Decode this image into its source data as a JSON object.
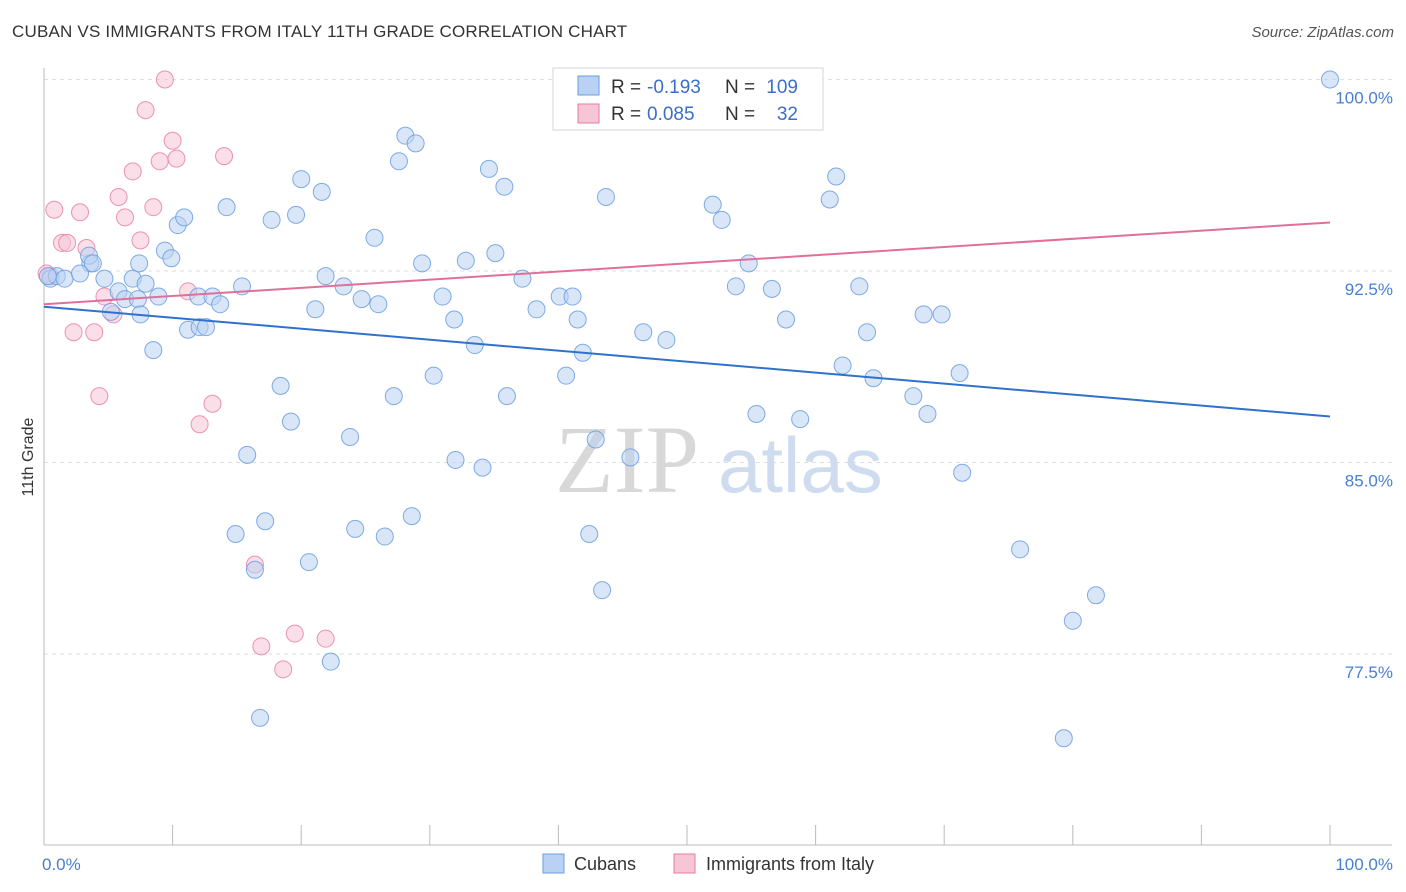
{
  "title": "CUBAN VS IMMIGRANTS FROM ITALY 11TH GRADE CORRELATION CHART",
  "source": "Source: ZipAtlas.com",
  "colors": {
    "cubans": "#6a9de0",
    "cubans_fill": "#b9d1f2",
    "italy": "#e87aa0",
    "italy_fill": "#f6c5d6",
    "blue_line": "#2f72cc",
    "pink_line": "#e0709a",
    "tick_text": "#4a7fd0",
    "grid": "#dddddd"
  },
  "legend": {
    "rows": [
      {
        "r_label": "R =",
        "r_value": "-0.193",
        "n_label": "N =",
        "n_value": "109"
      },
      {
        "r_label": "R =",
        "r_value": "0.085",
        "n_label": "N =",
        "n_value": "32"
      }
    ]
  },
  "watermark": {
    "zip": "ZIP",
    "atlas": "atlas"
  },
  "chart_data": {
    "type": "scatter",
    "xlabel": "",
    "ylabel": "11th Grade",
    "xlim": [
      0,
      100
    ],
    "ylim": [
      72,
      100.5
    ],
    "y_ticks": [
      100.0,
      92.5,
      85.0,
      77.5
    ],
    "y_tick_labels": [
      "100.0%",
      "92.5%",
      "85.0%",
      "77.5%"
    ],
    "x_tick_labels": [
      "0.0%",
      "100.0%"
    ],
    "series": [
      {
        "name": "Cubans",
        "points": [
          [
            0.5,
            92.2
          ],
          [
            1.0,
            92.3
          ],
          [
            1.6,
            92.2
          ],
          [
            3.6,
            92.8
          ],
          [
            3.5,
            93.1
          ],
          [
            3.8,
            92.8
          ],
          [
            4.7,
            92.2
          ],
          [
            5.2,
            90.9
          ],
          [
            5.8,
            91.7
          ],
          [
            6.3,
            91.4
          ],
          [
            6.9,
            92.2
          ],
          [
            7.3,
            91.4
          ],
          [
            7.5,
            90.8
          ],
          [
            7.4,
            92.8
          ],
          [
            7.9,
            92.0
          ],
          [
            8.5,
            89.4
          ],
          [
            8.9,
            91.5
          ],
          [
            9.4,
            93.3
          ],
          [
            9.9,
            93.0
          ],
          [
            10.4,
            94.3
          ],
          [
            10.9,
            94.6
          ],
          [
            11.2,
            90.2
          ],
          [
            12.0,
            91.5
          ],
          [
            12.1,
            90.3
          ],
          [
            12.6,
            90.3
          ],
          [
            13.1,
            91.5
          ],
          [
            13.7,
            91.2
          ],
          [
            14.2,
            95.0
          ],
          [
            14.9,
            82.2
          ],
          [
            15.4,
            91.9
          ],
          [
            15.8,
            85.3
          ],
          [
            16.4,
            80.8
          ],
          [
            16.8,
            75.0
          ],
          [
            17.2,
            82.7
          ],
          [
            17.7,
            94.5
          ],
          [
            18.4,
            88.0
          ],
          [
            19.2,
            86.6
          ],
          [
            19.6,
            94.7
          ],
          [
            20.0,
            96.1
          ],
          [
            20.6,
            81.1
          ],
          [
            21.1,
            91.0
          ],
          [
            21.6,
            95.6
          ],
          [
            21.9,
            92.3
          ],
          [
            22.3,
            77.2
          ],
          [
            23.3,
            91.9
          ],
          [
            23.8,
            86.0
          ],
          [
            24.2,
            82.4
          ],
          [
            24.7,
            91.4
          ],
          [
            25.7,
            93.8
          ],
          [
            26.0,
            91.2
          ],
          [
            26.5,
            82.1
          ],
          [
            27.2,
            87.6
          ],
          [
            27.6,
            96.8
          ],
          [
            28.1,
            97.8
          ],
          [
            28.6,
            82.9
          ],
          [
            28.9,
            97.5
          ],
          [
            29.4,
            92.8
          ],
          [
            30.3,
            88.4
          ],
          [
            31.0,
            91.5
          ],
          [
            31.9,
            90.6
          ],
          [
            32.0,
            85.1
          ],
          [
            32.8,
            92.9
          ],
          [
            33.5,
            89.6
          ],
          [
            34.1,
            84.8
          ],
          [
            34.6,
            96.5
          ],
          [
            35.1,
            93.2
          ],
          [
            35.8,
            95.8
          ],
          [
            36.0,
            87.6
          ],
          [
            37.2,
            92.2
          ],
          [
            38.3,
            91.0
          ],
          [
            40.1,
            91.5
          ],
          [
            40.6,
            88.4
          ],
          [
            41.1,
            91.5
          ],
          [
            41.5,
            90.6
          ],
          [
            41.9,
            89.3
          ],
          [
            42.4,
            82.2
          ],
          [
            42.9,
            85.9
          ],
          [
            43.4,
            80.0
          ],
          [
            43.7,
            95.4
          ],
          [
            45.6,
            85.2
          ],
          [
            46.6,
            90.1
          ],
          [
            48.4,
            89.8
          ],
          [
            52.0,
            95.1
          ],
          [
            52.7,
            94.5
          ],
          [
            53.8,
            91.9
          ],
          [
            54.8,
            92.8
          ],
          [
            55.4,
            86.9
          ],
          [
            56.6,
            91.8
          ],
          [
            57.7,
            90.6
          ],
          [
            58.8,
            86.7
          ],
          [
            61.1,
            95.3
          ],
          [
            61.6,
            96.2
          ],
          [
            62.1,
            88.8
          ],
          [
            63.4,
            91.9
          ],
          [
            64.0,
            90.1
          ],
          [
            64.5,
            88.3
          ],
          [
            67.6,
            87.6
          ],
          [
            68.4,
            90.8
          ],
          [
            68.7,
            86.9
          ],
          [
            69.8,
            90.8
          ],
          [
            71.2,
            88.5
          ],
          [
            71.4,
            84.6
          ],
          [
            75.9,
            81.6
          ],
          [
            79.3,
            74.2
          ],
          [
            80.0,
            78.8
          ],
          [
            81.8,
            79.8
          ],
          [
            100.0,
            100.0
          ],
          [
            0.3,
            92.3
          ],
          [
            2.8,
            92.4
          ]
        ]
      },
      {
        "name": "Immigrants from Italy",
        "points": [
          [
            0.5,
            92.3
          ],
          [
            0.8,
            94.9
          ],
          [
            1.4,
            93.6
          ],
          [
            1.8,
            93.6
          ],
          [
            2.3,
            90.1
          ],
          [
            2.8,
            94.8
          ],
          [
            3.3,
            93.4
          ],
          [
            3.9,
            90.1
          ],
          [
            4.3,
            87.6
          ],
          [
            4.7,
            91.5
          ],
          [
            5.4,
            90.8
          ],
          [
            5.8,
            95.4
          ],
          [
            6.3,
            94.6
          ],
          [
            6.9,
            96.4
          ],
          [
            7.5,
            93.7
          ],
          [
            7.9,
            98.8
          ],
          [
            8.5,
            95.0
          ],
          [
            9.0,
            96.8
          ],
          [
            9.4,
            100.0
          ],
          [
            10.0,
            97.6
          ],
          [
            10.3,
            96.9
          ],
          [
            11.2,
            91.7
          ],
          [
            12.1,
            86.5
          ],
          [
            13.1,
            87.3
          ],
          [
            14.0,
            97.0
          ],
          [
            16.4,
            81.0
          ],
          [
            16.9,
            77.8
          ],
          [
            18.6,
            76.9
          ],
          [
            19.5,
            78.3
          ],
          [
            21.9,
            78.1
          ],
          [
            44.0,
            100.0
          ],
          [
            0.2,
            92.4
          ]
        ]
      }
    ],
    "trendlines": [
      {
        "series": "Cubans",
        "x": [
          0,
          100
        ],
        "y": [
          91.1,
          86.8
        ]
      },
      {
        "series": "Immigrants from Italy",
        "x": [
          0,
          100
        ],
        "y": [
          91.2,
          94.4
        ]
      }
    ]
  }
}
